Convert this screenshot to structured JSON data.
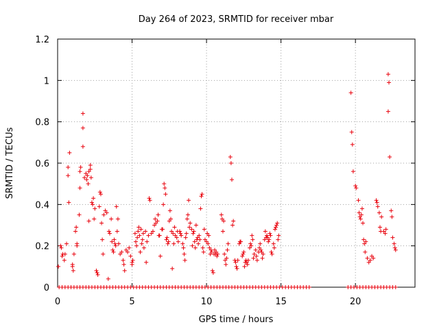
{
  "chart_data": {
    "type": "scatter",
    "title": "Day 264 of 2023, SRMTID for receiver mbar",
    "xlabel": "GPS time / hours",
    "ylabel": "SRMTID / TECUs",
    "xlim": [
      0,
      24
    ],
    "ylim": [
      0,
      1.2
    ],
    "xticks": [
      0,
      5,
      10,
      15,
      20
    ],
    "yticks": [
      0,
      0.2,
      0.4,
      0.6,
      0.8,
      1,
      1.2
    ],
    "ytick_labels": [
      "0",
      "0.2",
      "0.4",
      "0.6",
      "0.8",
      "1",
      "1.2"
    ],
    "grid": true,
    "marker": "+",
    "color": "#e8000b",
    "series": [
      {
        "name": "SRMTID",
        "points": [
          [
            0.05,
            0.1
          ],
          [
            0.2,
            0.2
          ],
          [
            0.25,
            0.19
          ],
          [
            0.3,
            0.15
          ],
          [
            0.35,
            0.16
          ],
          [
            0.45,
            0.13
          ],
          [
            0.5,
            0.16
          ],
          [
            0.6,
            0.21
          ],
          [
            0.7,
            0.58
          ],
          [
            0.7,
            0.54
          ],
          [
            0.75,
            0.41
          ],
          [
            0.8,
            0.65
          ],
          [
            1.0,
            0.11
          ],
          [
            1.0,
            0.1
          ],
          [
            1.05,
            0.08
          ],
          [
            1.1,
            0.16
          ],
          [
            1.2,
            0.27
          ],
          [
            1.25,
            0.29
          ],
          [
            1.3,
            0.21
          ],
          [
            1.3,
            0.2
          ],
          [
            1.45,
            0.35
          ],
          [
            1.5,
            0.48
          ],
          [
            1.5,
            0.56
          ],
          [
            1.55,
            0.58
          ],
          [
            1.7,
            0.84
          ],
          [
            1.7,
            0.77
          ],
          [
            1.7,
            0.68
          ],
          [
            1.8,
            0.53
          ],
          [
            1.9,
            0.55
          ],
          [
            1.95,
            0.52
          ],
          [
            2.0,
            0.54
          ],
          [
            2.05,
            0.5
          ],
          [
            2.1,
            0.56
          ],
          [
            2.1,
            0.32
          ],
          [
            2.2,
            0.59
          ],
          [
            2.2,
            0.57
          ],
          [
            2.25,
            0.53
          ],
          [
            2.3,
            0.41
          ],
          [
            2.35,
            0.4
          ],
          [
            2.4,
            0.43
          ],
          [
            2.45,
            0.33
          ],
          [
            2.5,
            0.38
          ],
          [
            2.6,
            0.08
          ],
          [
            2.65,
            0.07
          ],
          [
            2.7,
            0.06
          ],
          [
            2.8,
            0.39
          ],
          [
            2.85,
            0.46
          ],
          [
            2.9,
            0.45
          ],
          [
            2.95,
            0.31
          ],
          [
            3.0,
            0.23
          ],
          [
            3.05,
            0.16
          ],
          [
            3.1,
            0.35
          ],
          [
            3.2,
            0.37
          ],
          [
            3.3,
            0.36
          ],
          [
            3.4,
            0.04
          ],
          [
            3.45,
            0.27
          ],
          [
            3.5,
            0.26
          ],
          [
            3.6,
            0.33
          ],
          [
            3.65,
            0.22
          ],
          [
            3.7,
            0.18
          ],
          [
            3.75,
            0.17
          ],
          [
            3.8,
            0.23
          ],
          [
            3.85,
            0.21
          ],
          [
            3.9,
            0.2
          ],
          [
            3.95,
            0.39
          ],
          [
            4.0,
            0.27
          ],
          [
            4.05,
            0.33
          ],
          [
            4.1,
            0.21
          ],
          [
            4.2,
            0.16
          ],
          [
            4.3,
            0.17
          ],
          [
            4.4,
            0.13
          ],
          [
            4.45,
            0.11
          ],
          [
            4.5,
            0.08
          ],
          [
            4.6,
            0.18
          ],
          [
            4.7,
            0.17
          ],
          [
            4.8,
            0.19
          ],
          [
            4.9,
            0.15
          ],
          [
            5.0,
            0.12
          ],
          [
            5.0,
            0.11
          ],
          [
            5.05,
            0.13
          ],
          [
            5.2,
            0.26
          ],
          [
            5.25,
            0.22
          ],
          [
            5.3,
            0.2
          ],
          [
            5.35,
            0.24
          ],
          [
            5.4,
            0.27
          ],
          [
            5.45,
            0.29
          ],
          [
            5.5,
            0.25
          ],
          [
            5.55,
            0.17
          ],
          [
            5.6,
            0.28
          ],
          [
            5.65,
            0.21
          ],
          [
            5.7,
            0.23
          ],
          [
            5.75,
            0.26
          ],
          [
            5.8,
            0.19
          ],
          [
            5.9,
            0.27
          ],
          [
            5.95,
            0.12
          ],
          [
            6.0,
            0.22
          ],
          [
            6.1,
            0.25
          ],
          [
            6.15,
            0.43
          ],
          [
            6.2,
            0.42
          ],
          [
            6.3,
            0.26
          ],
          [
            6.4,
            0.27
          ],
          [
            6.5,
            0.3
          ],
          [
            6.55,
            0.33
          ],
          [
            6.6,
            0.31
          ],
          [
            6.7,
            0.32
          ],
          [
            6.75,
            0.35
          ],
          [
            6.8,
            0.25
          ],
          [
            6.85,
            0.25
          ],
          [
            6.9,
            0.15
          ],
          [
            7.0,
            0.28
          ],
          [
            7.05,
            0.28
          ],
          [
            7.1,
            0.4
          ],
          [
            7.15,
            0.5
          ],
          [
            7.2,
            0.48
          ],
          [
            7.25,
            0.45
          ],
          [
            7.3,
            0.23
          ],
          [
            7.35,
            0.24
          ],
          [
            7.4,
            0.21
          ],
          [
            7.45,
            0.22
          ],
          [
            7.5,
            0.32
          ],
          [
            7.55,
            0.37
          ],
          [
            7.6,
            0.33
          ],
          [
            7.65,
            0.27
          ],
          [
            7.7,
            0.09
          ],
          [
            7.75,
            0.26
          ],
          [
            7.8,
            0.21
          ],
          [
            7.85,
            0.29
          ],
          [
            7.9,
            0.25
          ],
          [
            8.0,
            0.24
          ],
          [
            8.05,
            0.27
          ],
          [
            8.1,
            0.22
          ],
          [
            8.2,
            0.27
          ],
          [
            8.25,
            0.26
          ],
          [
            8.3,
            0.25
          ],
          [
            8.4,
            0.21
          ],
          [
            8.45,
            0.19
          ],
          [
            8.5,
            0.16
          ],
          [
            8.55,
            0.13
          ],
          [
            8.6,
            0.24
          ],
          [
            8.65,
            0.26
          ],
          [
            8.7,
            0.33
          ],
          [
            8.75,
            0.35
          ],
          [
            8.8,
            0.42
          ],
          [
            8.85,
            0.29
          ],
          [
            8.9,
            0.31
          ],
          [
            9.0,
            0.28
          ],
          [
            9.05,
            0.2
          ],
          [
            9.1,
            0.26
          ],
          [
            9.15,
            0.27
          ],
          [
            9.2,
            0.22
          ],
          [
            9.25,
            0.19
          ],
          [
            9.3,
            0.3
          ],
          [
            9.35,
            0.23
          ],
          [
            9.4,
            0.24
          ],
          [
            9.45,
            0.21
          ],
          [
            9.5,
            0.25
          ],
          [
            9.55,
            0.23
          ],
          [
            9.6,
            0.38
          ],
          [
            9.65,
            0.44
          ],
          [
            9.7,
            0.45
          ],
          [
            9.75,
            0.19
          ],
          [
            9.8,
            0.17
          ],
          [
            9.85,
            0.28
          ],
          [
            9.9,
            0.23
          ],
          [
            10.0,
            0.22
          ],
          [
            10.05,
            0.26
          ],
          [
            10.1,
            0.21
          ],
          [
            10.15,
            0.25
          ],
          [
            10.2,
            0.19
          ],
          [
            10.25,
            0.16
          ],
          [
            10.3,
            0.18
          ],
          [
            10.35,
            0.17
          ],
          [
            10.4,
            0.08
          ],
          [
            10.45,
            0.07
          ],
          [
            10.5,
            0.16
          ],
          [
            10.55,
            0.18
          ],
          [
            10.6,
            0.16
          ],
          [
            10.65,
            0.17
          ],
          [
            10.7,
            0.15
          ],
          [
            10.75,
            0.16
          ],
          [
            11.0,
            0.35
          ],
          [
            11.05,
            0.33
          ],
          [
            11.1,
            0.27
          ],
          [
            11.15,
            0.32
          ],
          [
            11.2,
            0.16
          ],
          [
            11.25,
            0.13
          ],
          [
            11.3,
            0.11
          ],
          [
            11.35,
            0.14
          ],
          [
            11.4,
            0.18
          ],
          [
            11.45,
            0.21
          ],
          [
            11.6,
            0.63
          ],
          [
            11.65,
            0.6
          ],
          [
            11.7,
            0.52
          ],
          [
            11.75,
            0.3
          ],
          [
            11.8,
            0.32
          ],
          [
            11.9,
            0.13
          ],
          [
            11.95,
            0.12
          ],
          [
            12.0,
            0.1
          ],
          [
            12.05,
            0.09
          ],
          [
            12.1,
            0.13
          ],
          [
            12.2,
            0.21
          ],
          [
            12.25,
            0.22
          ],
          [
            12.3,
            0.22
          ],
          [
            12.4,
            0.15
          ],
          [
            12.45,
            0.16
          ],
          [
            12.5,
            0.17
          ],
          [
            12.55,
            0.1
          ],
          [
            12.6,
            0.12
          ],
          [
            12.65,
            0.13
          ],
          [
            12.7,
            0.12
          ],
          [
            12.75,
            0.11
          ],
          [
            12.8,
            0.13
          ],
          [
            12.9,
            0.19
          ],
          [
            12.95,
            0.21
          ],
          [
            13.0,
            0.2
          ],
          [
            13.05,
            0.25
          ],
          [
            13.1,
            0.23
          ],
          [
            13.15,
            0.14
          ],
          [
            13.2,
            0.16
          ],
          [
            13.3,
            0.18
          ],
          [
            13.35,
            0.15
          ],
          [
            13.4,
            0.13
          ],
          [
            13.5,
            0.17
          ],
          [
            13.55,
            0.19
          ],
          [
            13.6,
            0.21
          ],
          [
            13.65,
            0.18
          ],
          [
            13.7,
            0.17
          ],
          [
            13.75,
            0.14
          ],
          [
            13.8,
            0.16
          ],
          [
            13.9,
            0.23
          ],
          [
            13.95,
            0.27
          ],
          [
            14.0,
            0.24
          ],
          [
            14.05,
            0.25
          ],
          [
            14.1,
            0.24
          ],
          [
            14.15,
            0.22
          ],
          [
            14.2,
            0.23
          ],
          [
            14.25,
            0.26
          ],
          [
            14.3,
            0.25
          ],
          [
            14.35,
            0.17
          ],
          [
            14.4,
            0.16
          ],
          [
            14.5,
            0.21
          ],
          [
            14.55,
            0.19
          ],
          [
            14.6,
            0.28
          ],
          [
            14.65,
            0.29
          ],
          [
            14.7,
            0.3
          ],
          [
            14.75,
            0.31
          ],
          [
            14.8,
            0.23
          ],
          [
            14.85,
            0.25
          ],
          [
            19.7,
            0.94
          ],
          [
            19.75,
            0.75
          ],
          [
            19.8,
            0.69
          ],
          [
            19.85,
            0.56
          ],
          [
            20.0,
            0.49
          ],
          [
            20.05,
            0.48
          ],
          [
            20.2,
            0.42
          ],
          [
            20.25,
            0.36
          ],
          [
            20.3,
            0.34
          ],
          [
            20.35,
            0.33
          ],
          [
            20.4,
            0.35
          ],
          [
            20.45,
            0.38
          ],
          [
            20.5,
            0.31
          ],
          [
            20.55,
            0.23
          ],
          [
            20.6,
            0.21
          ],
          [
            20.65,
            0.17
          ],
          [
            20.7,
            0.22
          ],
          [
            20.8,
            0.14
          ],
          [
            20.9,
            0.12
          ],
          [
            21.0,
            0.13
          ],
          [
            21.1,
            0.15
          ],
          [
            21.2,
            0.14
          ],
          [
            21.4,
            0.42
          ],
          [
            21.45,
            0.41
          ],
          [
            21.5,
            0.39
          ],
          [
            21.6,
            0.36
          ],
          [
            21.65,
            0.29
          ],
          [
            21.7,
            0.27
          ],
          [
            21.75,
            0.34
          ],
          [
            21.9,
            0.27
          ],
          [
            22.0,
            0.26
          ],
          [
            22.05,
            0.28
          ],
          [
            22.2,
            1.03
          ],
          [
            22.25,
            0.99
          ],
          [
            22.2,
            0.85
          ],
          [
            22.3,
            0.63
          ],
          [
            22.4,
            0.37
          ],
          [
            22.45,
            0.34
          ],
          [
            22.5,
            0.24
          ],
          [
            22.6,
            0.21
          ],
          [
            22.65,
            0.19
          ],
          [
            22.7,
            0.18
          ]
        ],
        "zero_points_x": [
          0.1,
          0.3,
          0.5,
          0.7,
          0.9,
          1.1,
          1.3,
          1.5,
          1.7,
          1.9,
          2.1,
          2.3,
          2.5,
          2.7,
          2.9,
          3.1,
          3.3,
          3.5,
          3.7,
          3.9,
          4.1,
          4.3,
          4.5,
          4.7,
          4.9,
          5.1,
          5.3,
          5.5,
          5.7,
          5.9,
          6.1,
          6.3,
          6.5,
          6.7,
          6.9,
          7.1,
          7.3,
          7.5,
          7.7,
          7.9,
          8.1,
          8.3,
          8.5,
          8.7,
          8.9,
          9.1,
          9.3,
          9.5,
          9.7,
          9.9,
          10.1,
          10.3,
          10.5,
          10.7,
          10.9,
          11.1,
          11.3,
          11.5,
          11.7,
          11.9,
          12.1,
          12.3,
          12.5,
          12.7,
          12.9,
          13.1,
          13.3,
          13.5,
          13.7,
          13.9,
          14.1,
          14.3,
          14.5,
          14.7,
          14.9,
          15.1,
          15.3,
          15.5,
          15.7,
          15.9,
          16.1,
          16.3,
          16.5,
          16.7,
          16.9,
          19.5,
          19.7,
          19.9,
          20.1,
          20.3,
          20.5,
          20.7,
          20.9,
          21.1,
          21.3,
          21.5,
          21.7,
          21.9,
          22.1,
          22.3,
          22.5,
          22.7
        ]
      }
    ]
  }
}
